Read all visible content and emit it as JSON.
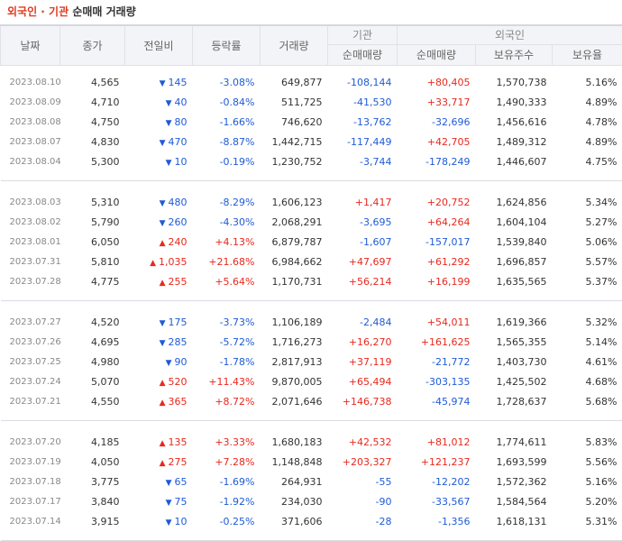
{
  "title": {
    "part1": "외국인 · 기관",
    "part2": "순매매 거래량"
  },
  "headers": {
    "date": "날짜",
    "close": "종가",
    "change": "전일비",
    "rate": "등락률",
    "volume": "거래량",
    "inst_group": "기관",
    "inst_net": "순매매량",
    "foreign_group": "외국인",
    "foreign_net": "순매매량",
    "foreign_hold": "보유주수",
    "foreign_ratio": "보유율"
  },
  "groups": [
    [
      {
        "date": "2023.08.10",
        "close": "4,565",
        "dir": "down",
        "change": "145",
        "rate": "-3.08%",
        "volume": "649,877",
        "inst": "-108,144",
        "foreign": "+80,405",
        "hold": "1,570,738",
        "ratio": "5.16%"
      },
      {
        "date": "2023.08.09",
        "close": "4,710",
        "dir": "down",
        "change": "40",
        "rate": "-0.84%",
        "volume": "511,725",
        "inst": "-41,530",
        "foreign": "+33,717",
        "hold": "1,490,333",
        "ratio": "4.89%"
      },
      {
        "date": "2023.08.08",
        "close": "4,750",
        "dir": "down",
        "change": "80",
        "rate": "-1.66%",
        "volume": "746,620",
        "inst": "-13,762",
        "foreign": "-32,696",
        "hold": "1,456,616",
        "ratio": "4.78%"
      },
      {
        "date": "2023.08.07",
        "close": "4,830",
        "dir": "down",
        "change": "470",
        "rate": "-8.87%",
        "volume": "1,442,715",
        "inst": "-117,449",
        "foreign": "+42,705",
        "hold": "1,489,312",
        "ratio": "4.89%"
      },
      {
        "date": "2023.08.04",
        "close": "5,300",
        "dir": "down",
        "change": "10",
        "rate": "-0.19%",
        "volume": "1,230,752",
        "inst": "-3,744",
        "foreign": "-178,249",
        "hold": "1,446,607",
        "ratio": "4.75%"
      }
    ],
    [
      {
        "date": "2023.08.03",
        "close": "5,310",
        "dir": "down",
        "change": "480",
        "rate": "-8.29%",
        "volume": "1,606,123",
        "inst": "+1,417",
        "foreign": "+20,752",
        "hold": "1,624,856",
        "ratio": "5.34%"
      },
      {
        "date": "2023.08.02",
        "close": "5,790",
        "dir": "down",
        "change": "260",
        "rate": "-4.30%",
        "volume": "2,068,291",
        "inst": "-3,695",
        "foreign": "+64,264",
        "hold": "1,604,104",
        "ratio": "5.27%"
      },
      {
        "date": "2023.08.01",
        "close": "6,050",
        "dir": "up",
        "change": "240",
        "rate": "+4.13%",
        "volume": "6,879,787",
        "inst": "-1,607",
        "foreign": "-157,017",
        "hold": "1,539,840",
        "ratio": "5.06%"
      },
      {
        "date": "2023.07.31",
        "close": "5,810",
        "dir": "up",
        "change": "1,035",
        "rate": "+21.68%",
        "volume": "6,984,662",
        "inst": "+47,697",
        "foreign": "+61,292",
        "hold": "1,696,857",
        "ratio": "5.57%"
      },
      {
        "date": "2023.07.28",
        "close": "4,775",
        "dir": "up",
        "change": "255",
        "rate": "+5.64%",
        "volume": "1,170,731",
        "inst": "+56,214",
        "foreign": "+16,199",
        "hold": "1,635,565",
        "ratio": "5.37%"
      }
    ],
    [
      {
        "date": "2023.07.27",
        "close": "4,520",
        "dir": "down",
        "change": "175",
        "rate": "-3.73%",
        "volume": "1,106,189",
        "inst": "-2,484",
        "foreign": "+54,011",
        "hold": "1,619,366",
        "ratio": "5.32%"
      },
      {
        "date": "2023.07.26",
        "close": "4,695",
        "dir": "down",
        "change": "285",
        "rate": "-5.72%",
        "volume": "1,716,273",
        "inst": "+16,270",
        "foreign": "+161,625",
        "hold": "1,565,355",
        "ratio": "5.14%"
      },
      {
        "date": "2023.07.25",
        "close": "4,980",
        "dir": "down",
        "change": "90",
        "rate": "-1.78%",
        "volume": "2,817,913",
        "inst": "+37,119",
        "foreign": "-21,772",
        "hold": "1,403,730",
        "ratio": "4.61%"
      },
      {
        "date": "2023.07.24",
        "close": "5,070",
        "dir": "up",
        "change": "520",
        "rate": "+11.43%",
        "volume": "9,870,005",
        "inst": "+65,494",
        "foreign": "-303,135",
        "hold": "1,425,502",
        "ratio": "4.68%"
      },
      {
        "date": "2023.07.21",
        "close": "4,550",
        "dir": "up",
        "change": "365",
        "rate": "+8.72%",
        "volume": "2,071,646",
        "inst": "+146,738",
        "foreign": "-45,974",
        "hold": "1,728,637",
        "ratio": "5.68%"
      }
    ],
    [
      {
        "date": "2023.07.20",
        "close": "4,185",
        "dir": "up",
        "change": "135",
        "rate": "+3.33%",
        "volume": "1,680,183",
        "inst": "+42,532",
        "foreign": "+81,012",
        "hold": "1,774,611",
        "ratio": "5.83%"
      },
      {
        "date": "2023.07.19",
        "close": "4,050",
        "dir": "up",
        "change": "275",
        "rate": "+7.28%",
        "volume": "1,148,848",
        "inst": "+203,327",
        "foreign": "+121,237",
        "hold": "1,693,599",
        "ratio": "5.56%"
      },
      {
        "date": "2023.07.18",
        "close": "3,775",
        "dir": "down",
        "change": "65",
        "rate": "-1.69%",
        "volume": "264,931",
        "inst": "-55",
        "foreign": "-12,202",
        "hold": "1,572,362",
        "ratio": "5.16%"
      },
      {
        "date": "2023.07.17",
        "close": "3,840",
        "dir": "down",
        "change": "75",
        "rate": "-1.92%",
        "volume": "234,030",
        "inst": "-90",
        "foreign": "-33,567",
        "hold": "1,584,564",
        "ratio": "5.20%"
      },
      {
        "date": "2023.07.14",
        "close": "3,915",
        "dir": "down",
        "change": "10",
        "rate": "-0.25%",
        "volume": "371,606",
        "inst": "-28",
        "foreign": "-1,356",
        "hold": "1,618,131",
        "ratio": "5.31%"
      }
    ]
  ],
  "colors": {
    "up": "#e8281e",
    "down": "#1f5bd6",
    "title_accent": "#e03a1e"
  },
  "icons": {
    "up": "triangle-up-icon",
    "down": "triangle-down-icon"
  }
}
